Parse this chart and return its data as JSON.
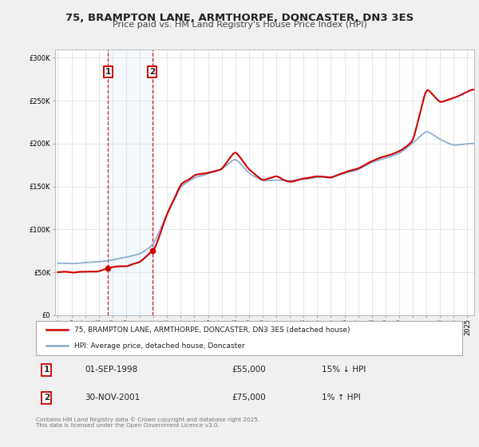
{
  "title": "75, BRAMPTON LANE, ARMTHORPE, DONCASTER, DN3 3ES",
  "subtitle": "Price paid vs. HM Land Registry's House Price Index (HPI)",
  "legend_line1": "75, BRAMPTON LANE, ARMTHORPE, DONCASTER, DN3 3ES (detached house)",
  "legend_line2": "HPI: Average price, detached house, Doncaster",
  "property_color": "#cc0000",
  "hpi_color": "#88aacc",
  "purchase1_date": "01-SEP-1998",
  "purchase1_price": 55000,
  "purchase1_hpi": "15% ↓ HPI",
  "purchase2_date": "30-NOV-2001",
  "purchase2_price": 75000,
  "purchase2_hpi": "1% ↑ HPI",
  "purchase1_x": 1998.67,
  "purchase2_x": 2001.92,
  "shading_x1": 1998.67,
  "shading_x2": 2001.92,
  "ylim_min": 0,
  "ylim_max": 310000,
  "xlim_min": 1994.8,
  "xlim_max": 2025.5,
  "background_color": "#f0f0f0",
  "plot_bg_color": "#ffffff",
  "footnote": "Contains HM Land Registry data © Crown copyright and database right 2025.\nThis data is licensed under the Open Government Licence v3.0.",
  "hpi_anchors_x": [
    1995,
    1996,
    1997,
    1998,
    1999,
    2000,
    2001,
    2002,
    2003,
    2004,
    2005,
    2006,
    2007,
    2008,
    2009,
    2010,
    2011,
    2012,
    2013,
    2014,
    2015,
    2016,
    2017,
    2018,
    2019,
    2020,
    2021,
    2022,
    2023,
    2024,
    2025.3
  ],
  "hpi_anchors_y": [
    60000,
    60500,
    61500,
    62500,
    64500,
    67500,
    71000,
    82000,
    118000,
    150000,
    160000,
    165000,
    170000,
    183000,
    165000,
    156000,
    158000,
    156000,
    158000,
    161000,
    161000,
    165000,
    170000,
    178000,
    183000,
    188000,
    200000,
    215000,
    205000,
    198000,
    200000
  ],
  "prop_anchors_x": [
    1995,
    1996,
    1997,
    1998.0,
    1998.67,
    1999,
    2000,
    2001.0,
    2001.92,
    2002.1,
    2003,
    2004,
    2005,
    2006,
    2007,
    2008,
    2009,
    2010,
    2011,
    2012,
    2013,
    2014,
    2015,
    2016,
    2017,
    2018,
    2019,
    2020,
    2021,
    2022,
    2023,
    2024,
    2025.3
  ],
  "prop_anchors_y": [
    50000,
    50000,
    50500,
    51000,
    55000,
    55500,
    57000,
    62000,
    75000,
    77000,
    118000,
    152000,
    163000,
    166000,
    170000,
    192000,
    170000,
    157000,
    162000,
    155000,
    159000,
    162000,
    160000,
    166000,
    171000,
    180000,
    185000,
    191000,
    202000,
    265000,
    248000,
    253000,
    263000
  ]
}
